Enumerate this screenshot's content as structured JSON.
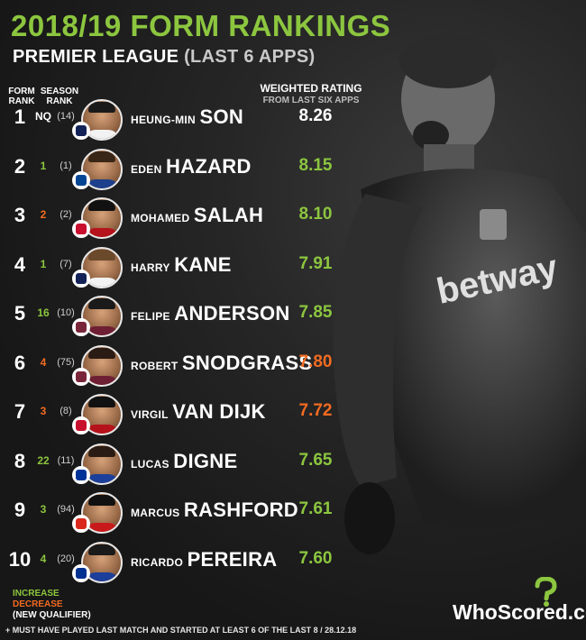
{
  "title": "2018/19 FORM RANKINGS",
  "subtitle": {
    "bold": "PREMIER LEAGUE",
    "light": "(LAST 6 APPS)"
  },
  "headers": {
    "form_rank": "FORM RANK",
    "season_rank": "SEASON RANK",
    "weighted_rating": "WEIGHTED RATING",
    "weighted_rating_sub": "FROM LAST SIX APPS"
  },
  "colors": {
    "increase": "#8cc63f",
    "decrease": "#f26b21",
    "neutral": "#ffffff"
  },
  "rows": [
    {
      "rank": "1",
      "change": "NQ",
      "change_type": "new",
      "season": "(14)",
      "first": "HEUNG-MIN",
      "last": "SON",
      "rating": "8.26",
      "rating_type": "new",
      "club_color": "#132257",
      "shirt": "#f2f2f2",
      "hair": "#1a1a1a"
    },
    {
      "rank": "2",
      "change": "1",
      "change_type": "increase",
      "season": "(1)",
      "first": "EDEN",
      "last": "HAZARD",
      "rating": "8.15",
      "rating_type": "increase",
      "club_color": "#034694",
      "shirt": "#1d3f8c",
      "hair": "#3a2616"
    },
    {
      "rank": "3",
      "change": "2",
      "change_type": "decrease",
      "season": "(2)",
      "first": "MOHAMED",
      "last": "SALAH",
      "rating": "8.10",
      "rating_type": "increase",
      "club_color": "#c8102e",
      "shirt": "#b5121b",
      "hair": "#111111"
    },
    {
      "rank": "4",
      "change": "1",
      "change_type": "increase",
      "season": "(7)",
      "first": "HARRY",
      "last": "KANE",
      "rating": "7.91",
      "rating_type": "increase",
      "club_color": "#132257",
      "shirt": "#f2f2f2",
      "hair": "#6b4a2c"
    },
    {
      "rank": "5",
      "change": "16",
      "change_type": "increase",
      "season": "(10)",
      "first": "FELIPE",
      "last": "ANDERSON",
      "rating": "7.85",
      "rating_type": "increase",
      "club_color": "#7a263a",
      "shirt": "#6e1f33",
      "hair": "#1a1a1a"
    },
    {
      "rank": "6",
      "change": "4",
      "change_type": "decrease",
      "season": "(75)",
      "first": "ROBERT",
      "last": "SNODGRASS",
      "rating": "7.80",
      "rating_type": "decrease",
      "club_color": "#7a263a",
      "shirt": "#6e1f33",
      "hair": "#2a1c14"
    },
    {
      "rank": "7",
      "change": "3",
      "change_type": "decrease",
      "season": "(8)",
      "first": "VIRGIL",
      "last": "VAN DIJK",
      "rating": "7.72",
      "rating_type": "decrease",
      "club_color": "#c8102e",
      "shirt": "#b5121b",
      "hair": "#111111"
    },
    {
      "rank": "8",
      "change": "22",
      "change_type": "increase",
      "season": "(11)",
      "first": "LUCAS",
      "last": "DIGNE",
      "rating": "7.65",
      "rating_type": "increase",
      "club_color": "#003399",
      "shirt": "#1b3f9a",
      "hair": "#2a1c14"
    },
    {
      "rank": "9",
      "change": "3",
      "change_type": "increase",
      "season": "(94)",
      "first": "MARCUS",
      "last": "RASHFORD",
      "rating": "7.61",
      "rating_type": "increase",
      "club_color": "#da291c",
      "shirt": "#c81a1a",
      "hair": "#111111"
    },
    {
      "rank": "10",
      "change": "4",
      "change_type": "increase",
      "season": "(20)",
      "first": "RICARDO",
      "last": "PEREIRA",
      "rating": "7.60",
      "rating_type": "increase",
      "club_color": "#003090",
      "shirt": "#1b3f9a",
      "hair": "#1a1a1a"
    }
  ],
  "legend": {
    "increase": "INCREASE",
    "decrease": "DECREASE",
    "new": "(NEW QUALIFIER)"
  },
  "footnote": "+ MUST HAVE PLAYED LAST MATCH AND STARTED AT LEAST 6 OF THE LAST 8 / 28.12.18",
  "logo": "WhoScored.com"
}
